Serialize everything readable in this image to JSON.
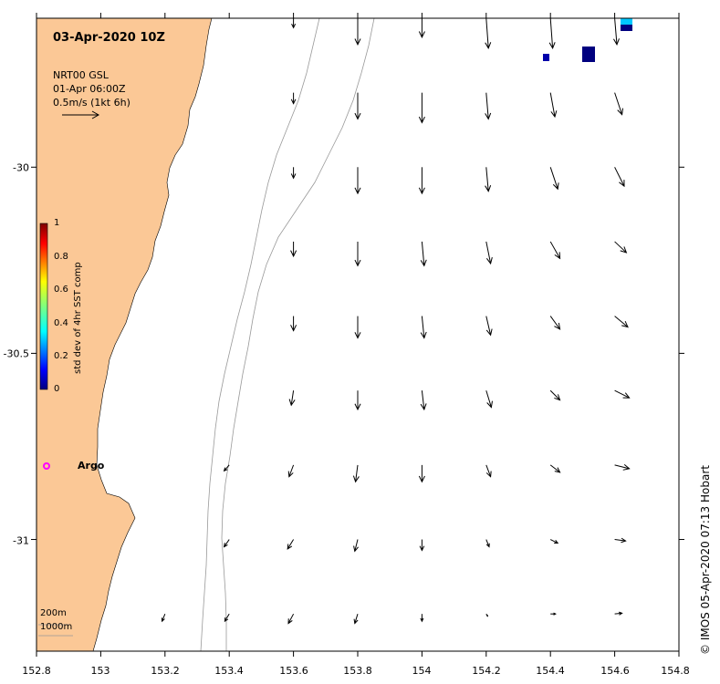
{
  "map": {
    "date_label": "03-Apr-2020 10Z",
    "product": "NRT00 GSL",
    "product_time": "01-Apr 06:00Z",
    "scale_label": "0.5m/s (1kt 6h)",
    "argo_label": "Argo",
    "contour_label_200": "200m",
    "contour_label_1000": "1000m",
    "credit": "© IMOS 05-Apr-2020 07:13 Hobart",
    "land_color": "#FBC896",
    "argo_color": "#FF00FF"
  },
  "axes": {
    "x_ticks": [
      "152.8",
      "153",
      "153.2",
      "153.4",
      "153.6",
      "153.8",
      "154",
      "154.2",
      "154.4",
      "154.6",
      "154.8"
    ],
    "y_ticks": [
      "-30",
      "-30.5",
      "-31"
    ],
    "xlim": [
      152.8,
      154.8
    ],
    "ylim": [
      -31.3,
      -29.6
    ]
  },
  "colorbar": {
    "title": "std dev of 4hr SST comp",
    "ticks": [
      "1",
      "0.8",
      "0.6",
      "0.4",
      "0.2",
      "0"
    ],
    "range": [
      0,
      1
    ]
  },
  "chart_data": {
    "type": "vector_field",
    "units": "m/s",
    "lon": [
      153.2,
      153.4,
      153.6,
      153.8,
      154.0,
      154.2,
      154.4,
      154.6
    ],
    "lat": [
      -29.6,
      -29.8,
      -30.0,
      -30.2,
      -30.4,
      -30.6,
      -30.8,
      -31.0,
      -31.2
    ],
    "currents": [
      {
        "lon": 153.6,
        "lat": -29.6,
        "u": 0.0,
        "v": -0.13
      },
      {
        "lon": 153.8,
        "lat": -29.6,
        "u": 0.0,
        "v": -0.36
      },
      {
        "lon": 154.0,
        "lat": -29.6,
        "u": 0.0,
        "v": -0.26
      },
      {
        "lon": 154.2,
        "lat": -29.6,
        "u": 0.03,
        "v": -0.41
      },
      {
        "lon": 154.4,
        "lat": -29.6,
        "u": 0.03,
        "v": -0.41
      },
      {
        "lon": 154.6,
        "lat": -29.6,
        "u": 0.03,
        "v": -0.36
      },
      {
        "lon": 153.6,
        "lat": -29.8,
        "u": 0.0,
        "v": -0.15
      },
      {
        "lon": 153.8,
        "lat": -29.8,
        "u": 0.0,
        "v": -0.36
      },
      {
        "lon": 154.0,
        "lat": -29.8,
        "u": 0.0,
        "v": -0.41
      },
      {
        "lon": 154.2,
        "lat": -29.8,
        "u": 0.03,
        "v": -0.36
      },
      {
        "lon": 154.4,
        "lat": -29.8,
        "u": 0.06,
        "v": -0.33
      },
      {
        "lon": 154.6,
        "lat": -29.8,
        "u": 0.1,
        "v": -0.3
      },
      {
        "lon": 153.6,
        "lat": -30.0,
        "u": 0.0,
        "v": -0.15
      },
      {
        "lon": 153.8,
        "lat": -30.0,
        "u": 0.0,
        "v": -0.36
      },
      {
        "lon": 154.0,
        "lat": -30.0,
        "u": 0.0,
        "v": -0.36
      },
      {
        "lon": 154.2,
        "lat": -30.0,
        "u": 0.03,
        "v": -0.33
      },
      {
        "lon": 154.4,
        "lat": -30.0,
        "u": 0.1,
        "v": -0.3
      },
      {
        "lon": 154.6,
        "lat": -30.0,
        "u": 0.13,
        "v": -0.26
      },
      {
        "lon": 153.6,
        "lat": -30.2,
        "u": 0.0,
        "v": -0.2
      },
      {
        "lon": 153.8,
        "lat": -30.2,
        "u": 0.0,
        "v": -0.33
      },
      {
        "lon": 154.0,
        "lat": -30.2,
        "u": 0.03,
        "v": -0.33
      },
      {
        "lon": 154.2,
        "lat": -30.2,
        "u": 0.06,
        "v": -0.3
      },
      {
        "lon": 154.4,
        "lat": -30.2,
        "u": 0.13,
        "v": -0.23
      },
      {
        "lon": 154.6,
        "lat": -30.2,
        "u": 0.16,
        "v": -0.15
      },
      {
        "lon": 153.6,
        "lat": -30.4,
        "u": 0.0,
        "v": -0.2
      },
      {
        "lon": 153.8,
        "lat": -30.4,
        "u": 0.0,
        "v": -0.3
      },
      {
        "lon": 154.0,
        "lat": -30.4,
        "u": 0.03,
        "v": -0.3
      },
      {
        "lon": 154.2,
        "lat": -30.4,
        "u": 0.06,
        "v": -0.26
      },
      {
        "lon": 154.4,
        "lat": -30.4,
        "u": 0.13,
        "v": -0.18
      },
      {
        "lon": 154.6,
        "lat": -30.4,
        "u": 0.18,
        "v": -0.15
      },
      {
        "lon": 153.6,
        "lat": -30.6,
        "u": -0.03,
        "v": -0.2
      },
      {
        "lon": 153.8,
        "lat": -30.6,
        "u": 0.0,
        "v": -0.26
      },
      {
        "lon": 154.0,
        "lat": -30.6,
        "u": 0.03,
        "v": -0.26
      },
      {
        "lon": 154.2,
        "lat": -30.6,
        "u": 0.07,
        "v": -0.23
      },
      {
        "lon": 154.4,
        "lat": -30.6,
        "u": 0.13,
        "v": -0.13
      },
      {
        "lon": 154.6,
        "lat": -30.6,
        "u": 0.2,
        "v": -0.1
      },
      {
        "lon": 153.4,
        "lat": -30.8,
        "u": -0.07,
        "v": -0.08
      },
      {
        "lon": 153.6,
        "lat": -30.8,
        "u": -0.06,
        "v": -0.16
      },
      {
        "lon": 153.8,
        "lat": -30.8,
        "u": -0.03,
        "v": -0.23
      },
      {
        "lon": 154.0,
        "lat": -30.8,
        "u": 0.0,
        "v": -0.23
      },
      {
        "lon": 154.2,
        "lat": -30.8,
        "u": 0.06,
        "v": -0.16
      },
      {
        "lon": 154.4,
        "lat": -30.8,
        "u": 0.13,
        "v": -0.1
      },
      {
        "lon": 154.6,
        "lat": -30.8,
        "u": 0.2,
        "v": -0.05
      },
      {
        "lon": 153.4,
        "lat": -31.0,
        "u": -0.07,
        "v": -0.1
      },
      {
        "lon": 153.6,
        "lat": -31.0,
        "u": -0.08,
        "v": -0.13
      },
      {
        "lon": 153.8,
        "lat": -31.0,
        "u": -0.04,
        "v": -0.16
      },
      {
        "lon": 154.0,
        "lat": -31.0,
        "u": 0.0,
        "v": -0.15
      },
      {
        "lon": 154.2,
        "lat": -31.0,
        "u": 0.04,
        "v": -0.1
      },
      {
        "lon": 154.4,
        "lat": -31.0,
        "u": 0.1,
        "v": -0.05
      },
      {
        "lon": 154.6,
        "lat": -31.0,
        "u": 0.15,
        "v": -0.02
      },
      {
        "lon": 153.2,
        "lat": -31.2,
        "u": -0.04,
        "v": -0.1
      },
      {
        "lon": 153.4,
        "lat": -31.2,
        "u": -0.06,
        "v": -0.1
      },
      {
        "lon": 153.6,
        "lat": -31.2,
        "u": -0.07,
        "v": -0.13
      },
      {
        "lon": 153.8,
        "lat": -31.2,
        "u": -0.04,
        "v": -0.13
      },
      {
        "lon": 154.0,
        "lat": -31.2,
        "u": 0.0,
        "v": -0.1
      },
      {
        "lon": 154.2,
        "lat": -31.2,
        "u": 0.02,
        "v": -0.03
      },
      {
        "lon": 154.4,
        "lat": -31.2,
        "u": 0.07,
        "v": 0.0
      },
      {
        "lon": 154.6,
        "lat": -31.2,
        "u": 0.1,
        "v": 0.01
      }
    ]
  }
}
